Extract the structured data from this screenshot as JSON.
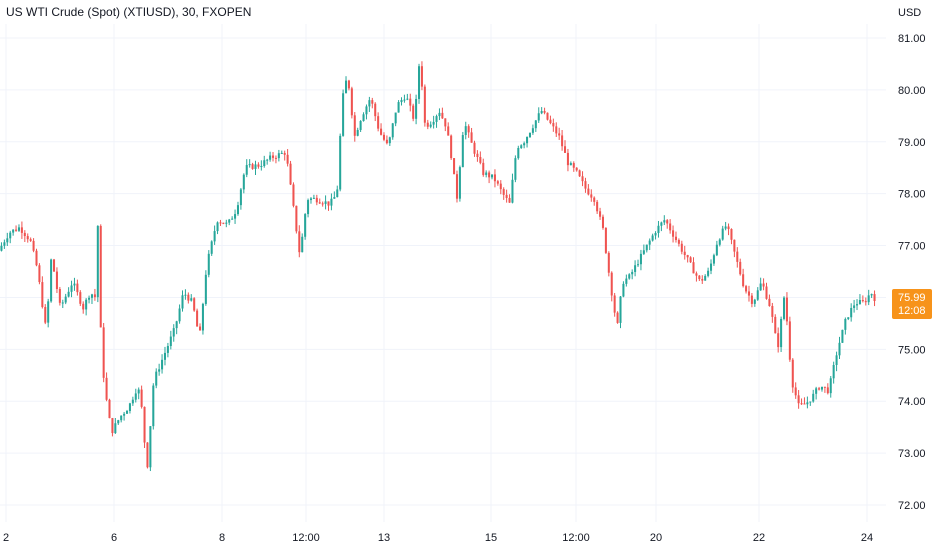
{
  "chart_data": {
    "type": "candlestick",
    "title": "US WTI Crude (Spot) (XTIUSD), 30, FXOPEN",
    "ylabel": "USD",
    "ylim": [
      71.7,
      81.3
    ],
    "yticks": [
      "72.00",
      "73.00",
      "74.00",
      "75.00",
      "76.00",
      "77.00",
      "78.00",
      "79.00",
      "80.00",
      "81.00"
    ],
    "xticks": [
      "2",
      "6",
      "8",
      "12:00",
      "13",
      "15",
      "12:00",
      "20",
      "22",
      "24"
    ],
    "grid": true,
    "last_price": "75.99",
    "countdown": "12:08",
    "colors": {
      "up": "#26a69a",
      "down": "#ef5350",
      "price_badge": "#f7931a",
      "grid": "#f0f3fa",
      "text": "#131722"
    },
    "series": [
      {
        "values": [
          [
            0.0,
            76.9
          ],
          [
            0.6,
            77.25
          ],
          [
            1.2,
            77.35
          ],
          [
            1.8,
            77.1
          ],
          [
            2.2,
            76.55
          ],
          [
            2.7,
            75.35
          ],
          [
            3.0,
            76.8
          ],
          [
            3.5,
            75.8
          ],
          [
            4.2,
            76.3
          ],
          [
            4.8,
            75.8
          ],
          [
            5.2,
            76.1
          ],
          [
            5.5,
            76.0
          ],
          [
            5.6,
            78.1
          ],
          [
            5.7,
            75.9
          ],
          [
            6.0,
            74.3
          ],
          [
            6.4,
            73.4
          ],
          [
            6.9,
            73.7
          ],
          [
            7.4,
            73.9
          ],
          [
            7.9,
            74.3
          ],
          [
            8.2,
            73.7
          ],
          [
            8.4,
            72.55
          ],
          [
            8.8,
            74.4
          ],
          [
            9.4,
            74.9
          ],
          [
            10.0,
            75.4
          ],
          [
            10.5,
            76.1
          ],
          [
            11.0,
            75.9
          ],
          [
            11.4,
            75.2
          ],
          [
            11.8,
            76.6
          ],
          [
            12.4,
            77.5
          ],
          [
            13.0,
            77.4
          ],
          [
            13.5,
            77.7
          ],
          [
            14.0,
            78.5
          ],
          [
            14.8,
            78.55
          ],
          [
            15.5,
            78.7
          ],
          [
            16.3,
            78.8
          ],
          [
            16.7,
            77.8
          ],
          [
            17.1,
            76.8
          ],
          [
            17.5,
            77.9
          ],
          [
            18.0,
            77.9
          ],
          [
            18.8,
            77.8
          ],
          [
            19.2,
            78.0
          ],
          [
            19.5,
            79.8
          ],
          [
            19.8,
            80.3
          ],
          [
            20.2,
            79.1
          ],
          [
            20.6,
            79.5
          ],
          [
            21.1,
            79.85
          ],
          [
            21.6,
            79.2
          ],
          [
            22.1,
            78.9
          ],
          [
            22.6,
            79.7
          ],
          [
            23.1,
            79.9
          ],
          [
            23.6,
            79.4
          ],
          [
            23.9,
            80.65
          ],
          [
            24.2,
            79.3
          ],
          [
            24.6,
            79.4
          ],
          [
            25.0,
            79.6
          ],
          [
            25.4,
            79.3
          ],
          [
            25.7,
            78.7
          ],
          [
            26.0,
            77.9
          ],
          [
            26.4,
            79.4
          ],
          [
            26.9,
            78.9
          ],
          [
            27.5,
            78.4
          ],
          [
            28.1,
            78.3
          ],
          [
            28.6,
            78.0
          ],
          [
            29.0,
            77.8
          ],
          [
            29.4,
            78.9
          ],
          [
            29.8,
            79.0
          ],
          [
            30.3,
            79.3
          ],
          [
            30.8,
            79.6
          ],
          [
            31.3,
            79.35
          ],
          [
            31.8,
            79.1
          ],
          [
            32.3,
            78.6
          ],
          [
            32.8,
            78.4
          ],
          [
            33.3,
            78.1
          ],
          [
            33.8,
            77.9
          ],
          [
            34.3,
            77.3
          ],
          [
            34.7,
            76.3
          ],
          [
            35.1,
            75.4
          ],
          [
            35.4,
            76.3
          ],
          [
            35.8,
            76.4
          ],
          [
            36.3,
            76.7
          ],
          [
            36.8,
            77.0
          ],
          [
            37.3,
            77.3
          ],
          [
            37.8,
            77.5
          ],
          [
            38.3,
            77.2
          ],
          [
            38.8,
            76.9
          ],
          [
            39.3,
            76.6
          ],
          [
            39.8,
            76.3
          ],
          [
            40.3,
            76.5
          ],
          [
            40.8,
            77.1
          ],
          [
            41.3,
            77.4
          ],
          [
            41.8,
            76.8
          ],
          [
            42.3,
            76.2
          ],
          [
            42.8,
            75.9
          ],
          [
            43.3,
            76.3
          ],
          [
            43.8,
            75.8
          ],
          [
            44.2,
            75.0
          ],
          [
            44.6,
            76.1
          ],
          [
            45.0,
            74.4
          ],
          [
            45.4,
            73.9
          ],
          [
            45.8,
            73.95
          ],
          [
            46.2,
            74.1
          ],
          [
            46.6,
            74.3
          ],
          [
            47.1,
            74.2
          ],
          [
            47.6,
            75.0
          ],
          [
            48.1,
            75.6
          ],
          [
            48.6,
            75.9
          ],
          [
            49.1,
            75.9
          ],
          [
            49.5,
            76.1
          ],
          [
            49.7,
            75.99
          ]
        ]
      }
    ]
  }
}
